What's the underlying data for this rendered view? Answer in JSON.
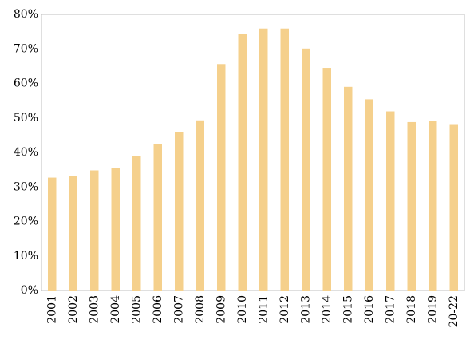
{
  "chart_data": {
    "type": "bar",
    "categories": [
      "2001",
      "2002",
      "2003",
      "2004",
      "2005",
      "2006",
      "2007",
      "2008",
      "2009",
      "2010",
      "2011",
      "2012",
      "2013",
      "2014",
      "2015",
      "2016",
      "2017",
      "2018",
      "2019",
      "20-22"
    ],
    "values": [
      32.7,
      33.2,
      34.8,
      35.5,
      39.0,
      42.4,
      45.9,
      49.3,
      65.6,
      74.4,
      75.9,
      75.9,
      70.1,
      64.5,
      59.0,
      55.4,
      51.9,
      48.8,
      49.1,
      48.2
    ],
    "ylim": [
      0,
      80
    ],
    "yticks": [
      0,
      10,
      20,
      30,
      40,
      50,
      60,
      70,
      80
    ],
    "ytick_labels": [
      "0%",
      "10%",
      "20%",
      "30%",
      "40%",
      "50%",
      "60%",
      "70%",
      "80%"
    ],
    "title": "",
    "xlabel": "",
    "ylabel": "",
    "grid": false,
    "colors": {
      "bar": "#F5D08C",
      "axis": "#BFBFBF"
    }
  }
}
